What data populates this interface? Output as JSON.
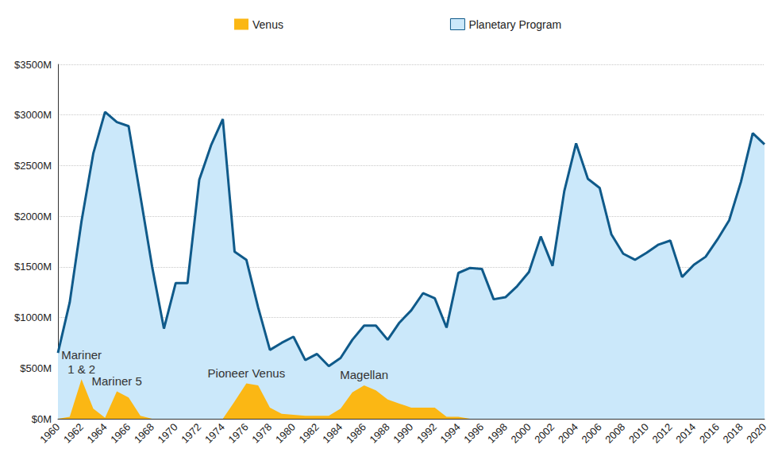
{
  "chart_data": {
    "type": "area",
    "x": [
      1960,
      1961,
      1962,
      1963,
      1964,
      1965,
      1966,
      1967,
      1968,
      1969,
      1970,
      1971,
      1972,
      1973,
      1974,
      1975,
      1976,
      1977,
      1978,
      1979,
      1980,
      1981,
      1982,
      1983,
      1984,
      1985,
      1986,
      1987,
      1988,
      1989,
      1990,
      1991,
      1992,
      1993,
      1994,
      1995,
      1996,
      1997,
      1998,
      1999,
      2000,
      2001,
      2002,
      2003,
      2004,
      2005,
      2006,
      2007,
      2008,
      2009,
      2010,
      2011,
      2012,
      2013,
      2014,
      2015,
      2016,
      2017,
      2018,
      2019,
      2020
    ],
    "series": [
      {
        "name": "Venus",
        "color": "#fbb714",
        "values": [
          0,
          20,
          390,
          100,
          10,
          270,
          210,
          30,
          0,
          0,
          0,
          0,
          0,
          0,
          0,
          170,
          350,
          330,
          110,
          50,
          40,
          30,
          30,
          30,
          100,
          260,
          330,
          280,
          190,
          150,
          110,
          110,
          110,
          20,
          20,
          0,
          null,
          null,
          null,
          null,
          null,
          null,
          null,
          null,
          null,
          null,
          null,
          null,
          null,
          null,
          null,
          null,
          null,
          null,
          null,
          null,
          null,
          null,
          null,
          null,
          null
        ]
      },
      {
        "name": "Planetary Program",
        "color": "#0f5a8a",
        "values": [
          650,
          1150,
          1950,
          2620,
          3030,
          2930,
          2890,
          2200,
          1500,
          890,
          1340,
          1340,
          2360,
          2700,
          2960,
          1650,
          1570,
          1100,
          680,
          750,
          810,
          580,
          640,
          520,
          600,
          780,
          920,
          920,
          780,
          950,
          1070,
          1240,
          1190,
          900,
          1440,
          1490,
          1480,
          1180,
          1200,
          1310,
          1450,
          1800,
          1510,
          2250,
          2720,
          2370,
          2280,
          1820,
          1630,
          1570,
          1640,
          1720,
          1760,
          1400,
          1520,
          1600,
          1770,
          1960,
          2340,
          2820,
          2710
        ]
      }
    ],
    "annotations": [
      {
        "text": "Mariner\n1 & 2",
        "x": 1962
      },
      {
        "text": "Mariner 5",
        "x": 1965
      },
      {
        "text": "Pioneer Venus",
        "x": 1976
      },
      {
        "text": "Magellan",
        "x": 1986
      }
    ],
    "xlim": [
      1960,
      2020
    ],
    "xticks": [
      1960,
      1962,
      1964,
      1966,
      1968,
      1970,
      1972,
      1974,
      1976,
      1978,
      1980,
      1982,
      1984,
      1986,
      1988,
      1990,
      1992,
      1994,
      1996,
      1998,
      2000,
      2002,
      2004,
      2006,
      2008,
      2010,
      2012,
      2014,
      2016,
      2018,
      2020
    ],
    "ylim": [
      0,
      3500
    ],
    "yticks": [
      {
        "value": 0,
        "label": "$0M"
      },
      {
        "value": 500,
        "label": "$500M"
      },
      {
        "value": 1000,
        "label": "$1000M"
      },
      {
        "value": 1500,
        "label": "$1500M"
      },
      {
        "value": 2000,
        "label": "$2000M"
      },
      {
        "value": 2500,
        "label": "$2500M"
      },
      {
        "value": 3000,
        "label": "$3000M"
      },
      {
        "value": 3500,
        "label": "$3500M"
      }
    ],
    "grid": true,
    "legend": "top"
  }
}
